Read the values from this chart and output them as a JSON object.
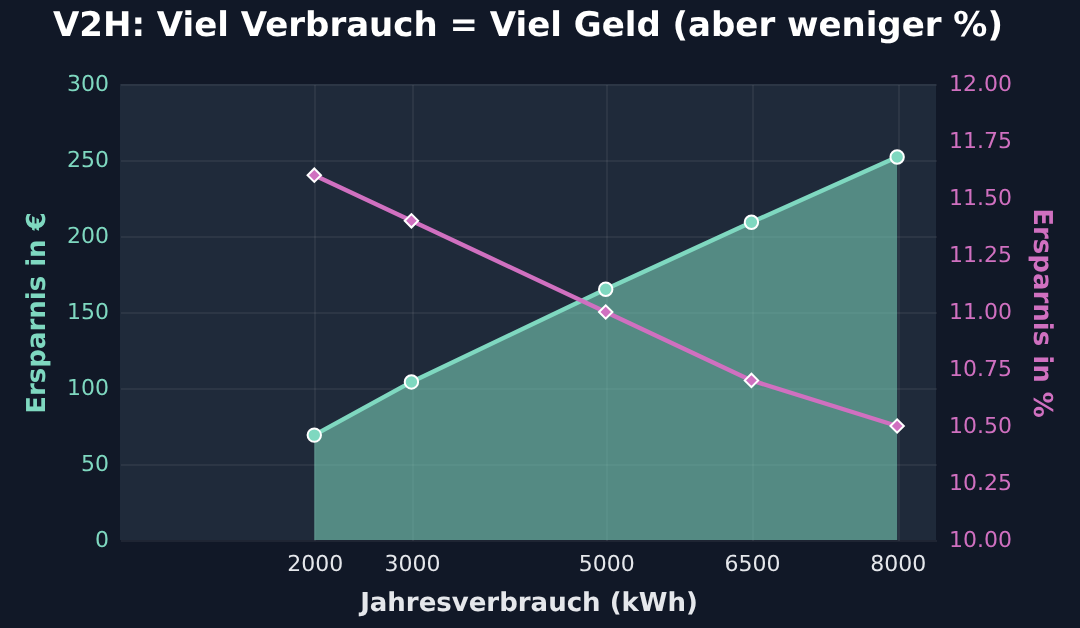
{
  "chart_data": {
    "type": "line",
    "title": "V2H: Viel Verbrauch = Viel Geld (aber weniger %)",
    "xlabel": "Jahresverbrauch (kWh)",
    "ylabel": "Ersparnis in €",
    "y2label": "Ersparnis in %",
    "x": [
      2000,
      3000,
      5000,
      6500,
      8000
    ],
    "series": [
      {
        "type": "area",
        "color": "#7fd8c0",
        "marker": "circle",
        "values": [
          69,
          104,
          165,
          209,
          252
        ]
      },
      {
        "color": "#d070c0",
        "marker": "diamond",
        "axis": "y2",
        "values": [
          11.6,
          11.4,
          11.0,
          10.7,
          10.5
        ]
      }
    ],
    "xlim": [
      0,
      8400
    ],
    "xticks": [
      2000,
      3000,
      5000,
      6500,
      8000
    ],
    "ylim": [
      0,
      300
    ],
    "yticks": [
      0,
      50,
      100,
      150,
      200,
      250,
      300
    ],
    "y2lim": [
      10,
      12
    ],
    "y2ticks": [
      {
        "value": 10,
        "label": "10.00"
      },
      {
        "value": 10.25,
        "label": "10.25"
      },
      {
        "value": 10.5,
        "label": "10.50"
      },
      {
        "value": 10.75,
        "label": "10.75"
      },
      {
        "value": 11,
        "label": "11.00"
      },
      {
        "value": 11.25,
        "label": "11.25"
      },
      {
        "value": 11.5,
        "label": "11.50"
      },
      {
        "value": 11.75,
        "label": "11.75"
      },
      {
        "value": 12,
        "label": "12.00"
      }
    ],
    "grid": true
  }
}
